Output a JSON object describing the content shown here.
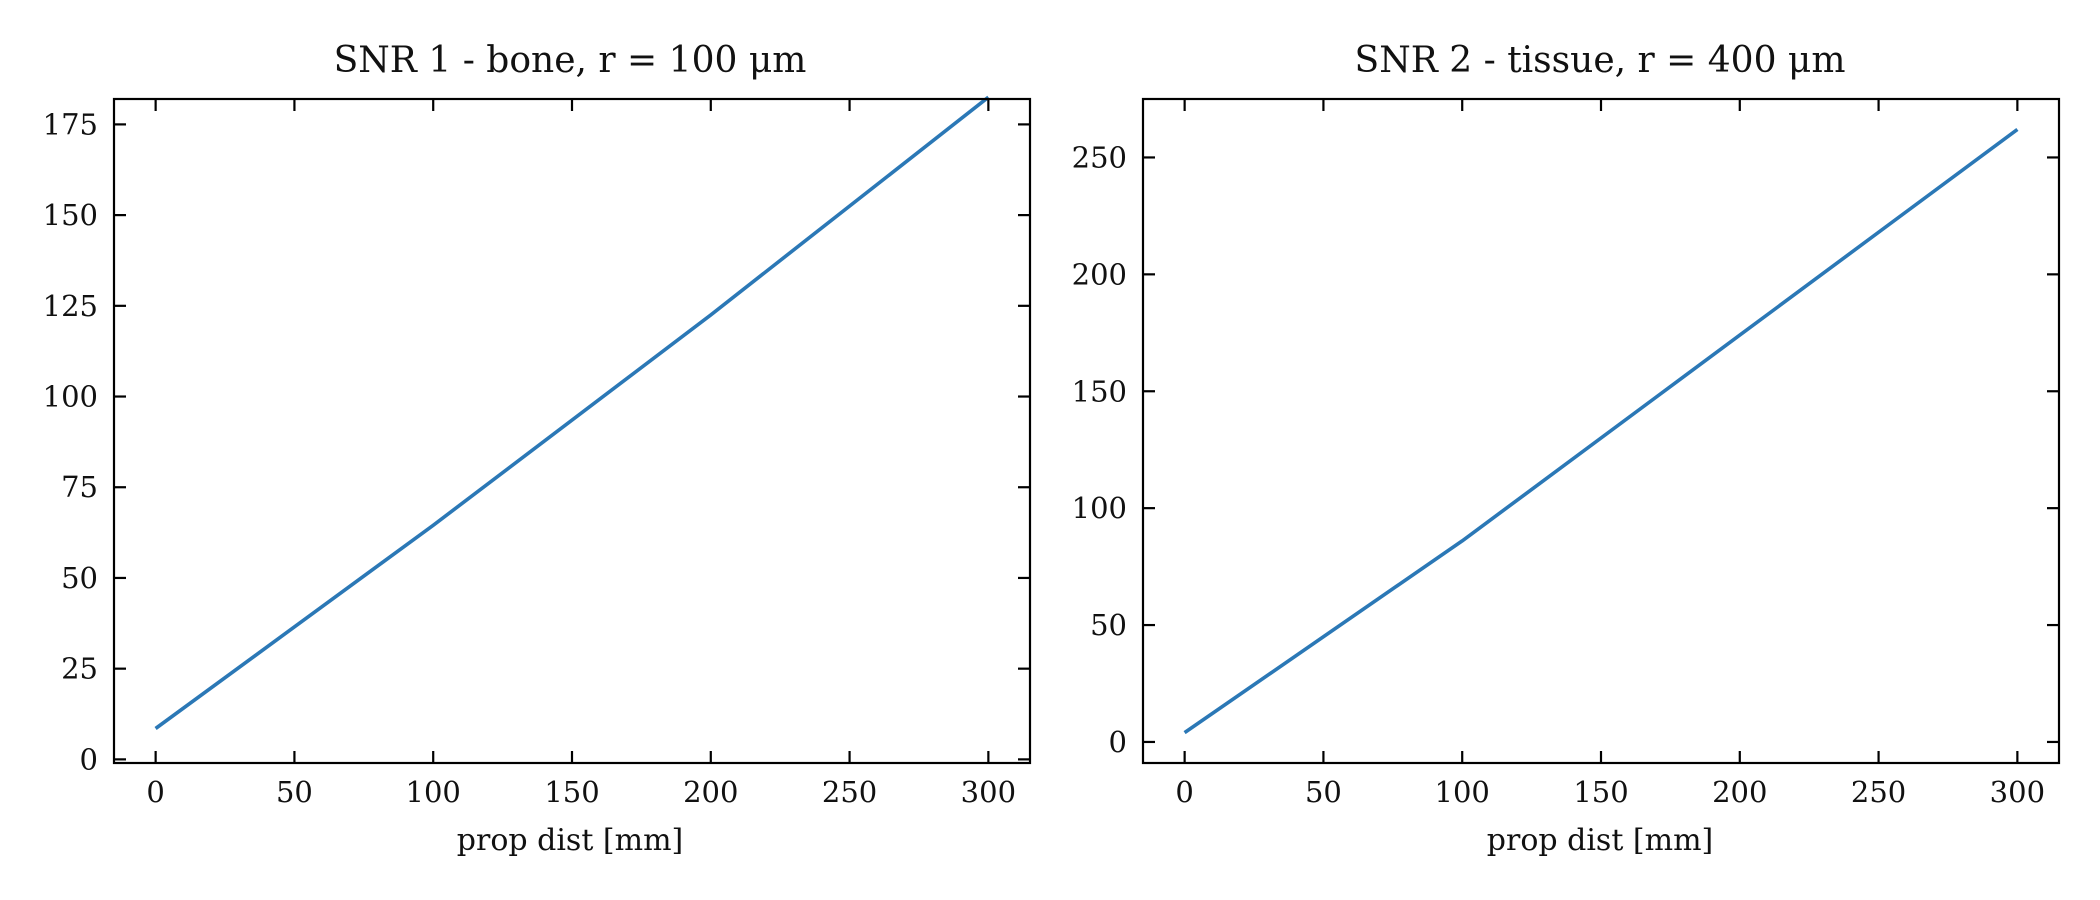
{
  "chart_data": [
    {
      "type": "line",
      "title": "SNR 1 - bone, r = 100 μm",
      "xlabel": "prop dist [mm]",
      "ylabel": "",
      "xlim": [
        -15,
        315
      ],
      "ylim": [
        -1,
        182
      ],
      "xticks": [
        0,
        50,
        100,
        150,
        200,
        250,
        300
      ],
      "yticks": [
        0,
        25,
        50,
        75,
        100,
        125,
        150,
        175
      ],
      "grid": false,
      "series": [
        {
          "color": "#2b78b6",
          "x": [
            0,
            100,
            200,
            300
          ],
          "y": [
            8.5,
            64.5,
            122.5,
            182.5
          ]
        }
      ]
    },
    {
      "type": "line",
      "title": "SNR 2 - tissue, r = 400 μm",
      "xlabel": "prop dist [mm]",
      "ylabel": "",
      "xlim": [
        -15,
        315
      ],
      "ylim": [
        -9,
        275
      ],
      "xticks": [
        0,
        50,
        100,
        150,
        200,
        250,
        300
      ],
      "yticks": [
        0,
        50,
        100,
        150,
        200,
        250
      ],
      "grid": false,
      "series": [
        {
          "color": "#2b78b6",
          "x": [
            0,
            100,
            200,
            300
          ],
          "y": [
            4,
            86,
            174,
            262
          ]
        }
      ]
    }
  ]
}
